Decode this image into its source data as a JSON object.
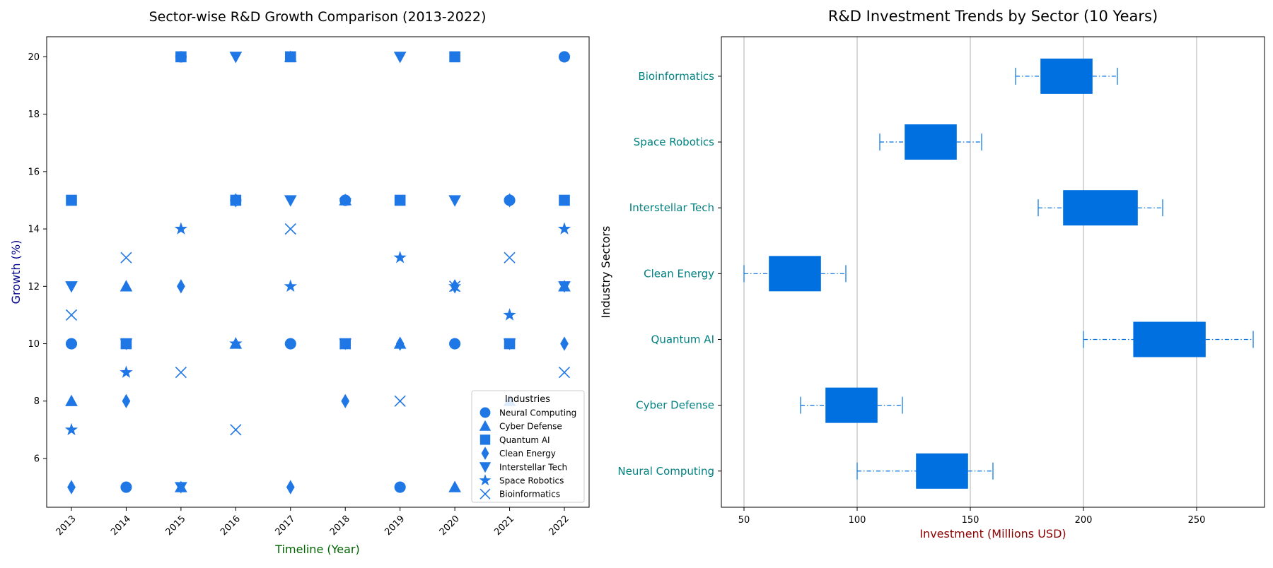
{
  "chart_data": [
    {
      "type": "scatter",
      "title": "Sector-wise R&D Growth Comparison (2013-2022)",
      "xlabel": "Timeline (Year)",
      "ylabel": "Growth (%)",
      "x": [
        "2013",
        "2014",
        "2015",
        "2016",
        "2017",
        "2018",
        "2019",
        "2020",
        "2021",
        "2022"
      ],
      "xtick_labels": [
        "2013",
        "2014",
        "2015",
        "2016",
        "2017",
        "2018",
        "2019",
        "2020",
        "2021",
        "2022"
      ],
      "ylim": [
        4.3,
        20.7
      ],
      "yticks": [
        6,
        8,
        10,
        12,
        14,
        16,
        18,
        20
      ],
      "grid": false,
      "legend": {
        "title": "Industries",
        "placement": "lower-right"
      },
      "marker_color": "#1f77e6",
      "series": [
        {
          "name": "Neural Computing",
          "marker": "circle",
          "values": [
            10,
            5,
            20,
            15,
            10,
            15,
            5,
            10,
            15,
            20
          ]
        },
        {
          "name": "Cyber Defense",
          "marker": "triangle-up",
          "values": [
            8,
            12,
            5,
            10,
            20,
            15,
            10,
            5,
            8,
            12
          ]
        },
        {
          "name": "Quantum AI",
          "marker": "square",
          "values": [
            15,
            10,
            20,
            15,
            20,
            10,
            15,
            20,
            10,
            15
          ]
        },
        {
          "name": "Clean Energy",
          "marker": "thin-diamond",
          "values": [
            5,
            8,
            12,
            15,
            5,
            8,
            10,
            12,
            15,
            10
          ]
        },
        {
          "name": "Interstellar Tech",
          "marker": "triangle-down",
          "values": [
            12,
            10,
            5,
            20,
            15,
            10,
            20,
            15,
            10,
            12
          ]
        },
        {
          "name": "Space Robotics",
          "marker": "star",
          "values": [
            7,
            9,
            14,
            10,
            12,
            15,
            13,
            12,
            11,
            14
          ]
        },
        {
          "name": "Bioinformatics",
          "marker": "x",
          "values": [
            11,
            13,
            9,
            7,
            14,
            10,
            8,
            12,
            13,
            9
          ]
        }
      ]
    },
    {
      "type": "box",
      "orientation": "horizontal",
      "title": "R&D Investment Trends by Sector (10 Years)",
      "xlabel": "Investment (Millions USD)",
      "ylabel": "Industry Sectors",
      "xlim": [
        40,
        280
      ],
      "xticks": [
        50,
        100,
        150,
        200,
        250
      ],
      "grid": "x-only",
      "box_color": "#0070e0",
      "categories": [
        "Neural Computing",
        "Cyber Defense",
        "Quantum AI",
        "Clean Energy",
        "Interstellar Tech",
        "Space Robotics",
        "Bioinformatics"
      ],
      "boxes": [
        {
          "name": "Neural Computing",
          "whisker_low": 100,
          "q1": 126,
          "q3": 149,
          "whisker_high": 160
        },
        {
          "name": "Cyber Defense",
          "whisker_low": 75,
          "q1": 86,
          "q3": 109,
          "whisker_high": 120
        },
        {
          "name": "Quantum AI",
          "whisker_low": 200,
          "q1": 222,
          "q3": 254,
          "whisker_high": 275
        },
        {
          "name": "Clean Energy",
          "whisker_low": 50,
          "q1": 61,
          "q3": 84,
          "whisker_high": 95
        },
        {
          "name": "Interstellar Tech",
          "whisker_low": 180,
          "q1": 191,
          "q3": 224,
          "whisker_high": 235
        },
        {
          "name": "Space Robotics",
          "whisker_low": 110,
          "q1": 121,
          "q3": 144,
          "whisker_high": 155
        },
        {
          "name": "Bioinformatics",
          "whisker_low": 170,
          "q1": 181,
          "q3": 204,
          "whisker_high": 215
        }
      ]
    }
  ]
}
